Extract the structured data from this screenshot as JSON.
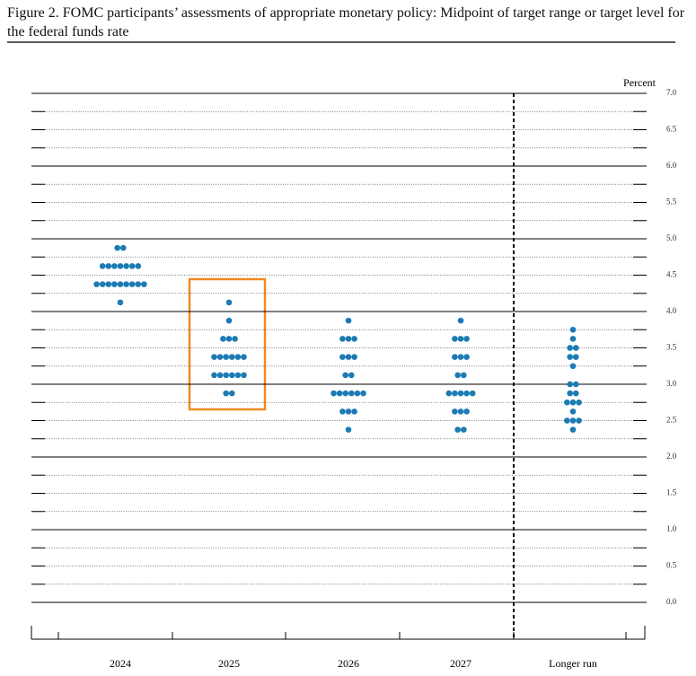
{
  "chart_data": {
    "type": "dot",
    "title": "Figure 2.  FOMC participants’ assessments of appropriate monetary policy: Midpoint of target range or target level for the federal funds rate",
    "y_label": "Percent",
    "categories": [
      "2024",
      "2025",
      "2026",
      "2027",
      "Longer run"
    ],
    "values": [
      [
        4.875,
        4.875,
        4.625,
        4.625,
        4.625,
        4.625,
        4.625,
        4.625,
        4.625,
        4.375,
        4.375,
        4.375,
        4.375,
        4.375,
        4.375,
        4.375,
        4.375,
        4.375,
        4.125
      ],
      [
        4.125,
        3.875,
        3.625,
        3.625,
        3.625,
        3.375,
        3.375,
        3.375,
        3.375,
        3.375,
        3.375,
        3.125,
        3.125,
        3.125,
        3.125,
        3.125,
        3.125,
        2.875,
        2.875
      ],
      [
        3.875,
        3.625,
        3.625,
        3.625,
        3.375,
        3.375,
        3.375,
        3.125,
        3.125,
        2.875,
        2.875,
        2.875,
        2.875,
        2.875,
        2.875,
        2.625,
        2.625,
        2.625,
        2.375
      ],
      [
        3.875,
        3.625,
        3.625,
        3.625,
        3.375,
        3.375,
        3.375,
        3.125,
        3.125,
        2.875,
        2.875,
        2.875,
        2.875,
        2.875,
        2.625,
        2.625,
        2.625,
        2.375,
        2.375
      ],
      [
        3.75,
        3.625,
        3.5,
        3.5,
        3.375,
        3.375,
        3.25,
        3.0,
        3.0,
        2.875,
        2.875,
        2.75,
        2.75,
        2.75,
        2.625,
        2.5,
        2.5,
        2.5,
        2.375
      ]
    ],
    "color": "#1b7bb3",
    "ylim": [
      0,
      7
    ],
    "yticks": [
      {
        "value": 0,
        "label": "0.0"
      },
      0.5,
      {
        "value": 1,
        "label": "1.0"
      },
      1.5,
      {
        "value": 2,
        "label": "2.0"
      },
      2.5,
      {
        "value": 3,
        "label": "3.0"
      },
      3.5,
      {
        "value": 4,
        "label": "4.0"
      },
      4.5,
      {
        "value": 5,
        "label": "5.0"
      },
      5.5,
      {
        "value": 6,
        "label": "6.0"
      },
      6.5,
      {
        "value": 7,
        "label": "7.0"
      }
    ],
    "grid": true
  }
}
